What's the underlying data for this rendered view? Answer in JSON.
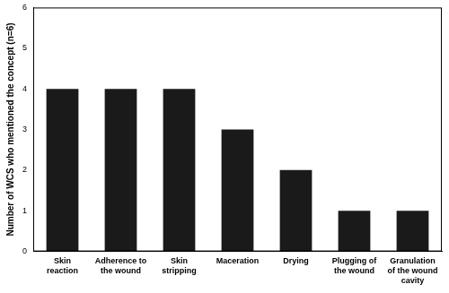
{
  "chart_data": {
    "type": "bar",
    "y_label": "Number of WCS who mentioned the concept (n=6)",
    "categories": [
      "Skin reaction",
      "Adherence to the wound",
      "Skin stripping",
      "Maceration",
      "Drying",
      "Plugging of the wound",
      "Granulation of the wound cavity"
    ],
    "values": [
      4,
      4,
      4,
      3,
      2,
      1,
      1
    ],
    "color": "#1a1a1a",
    "ylim": [
      0,
      6
    ],
    "yticks": [
      0,
      1,
      2,
      3,
      4,
      5,
      6
    ],
    "grid": false
  }
}
